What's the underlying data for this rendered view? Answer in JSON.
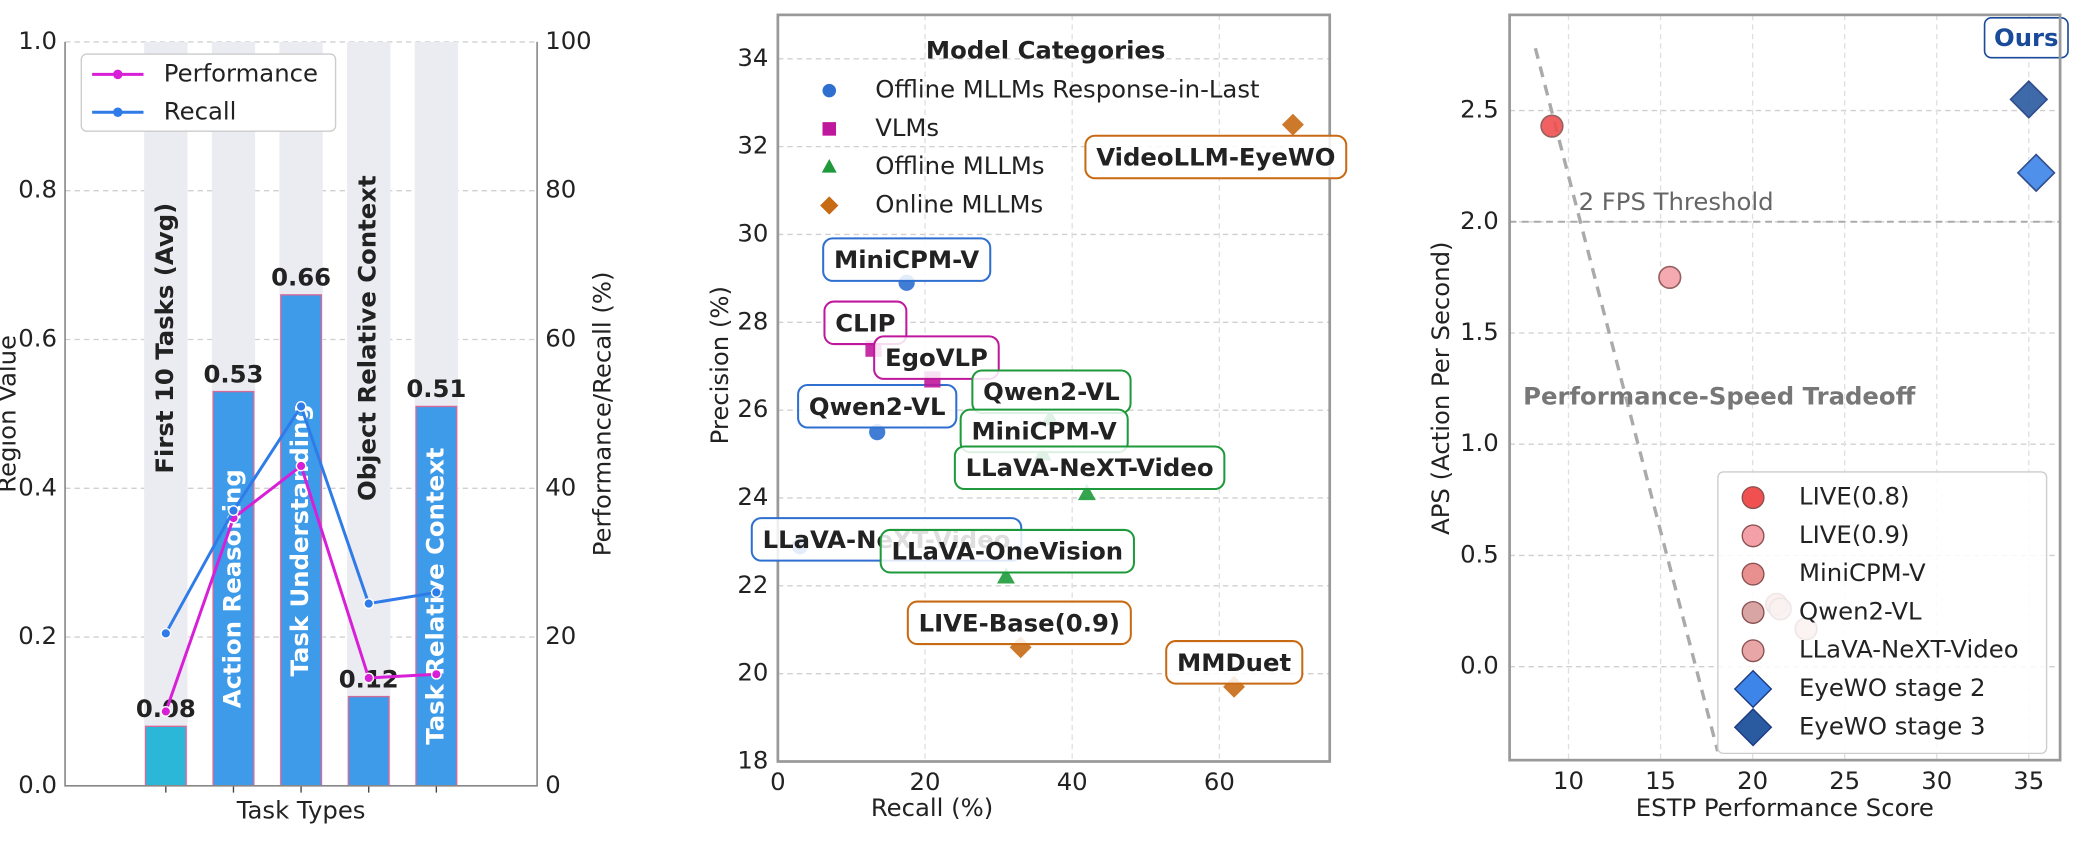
{
  "chart_data": [
    {
      "type": "bar_line",
      "y_label": "Region Value",
      "y2_label": "Performance/Recall (%)",
      "x_label": "Task Types",
      "categories": [
        "First 10 Tasks (Avg)",
        "Action Reasoning",
        "Task Understanding",
        "Object Relative Context",
        "Task Relative Context"
      ],
      "values": [
        0.08,
        0.53,
        0.66,
        0.12,
        0.51
      ],
      "colors": [
        "#2bb8d8",
        "#3d9be9",
        "#3d9be9",
        "#3d9be9",
        "#3d9be9"
      ],
      "ylim": [
        0,
        1
      ],
      "yticks": [
        {
          "value": 0,
          "label": "0.0"
        },
        0.2,
        0.4,
        0.6,
        0.8,
        {
          "value": 1,
          "label": "1.0"
        }
      ],
      "y2lim": [
        0,
        100
      ],
      "y2ticks": [
        0,
        20,
        40,
        60,
        80,
        100
      ],
      "series": [
        {
          "name": "Performance",
          "color": "#d81fd8",
          "axis": "y2",
          "values": [
            10,
            36,
            43,
            14.5,
            15
          ]
        },
        {
          "name": "Recall",
          "color": "#2f7be8",
          "axis": "y2",
          "values": [
            20.5,
            37,
            51,
            24.5,
            26
          ]
        }
      ],
      "grid": true,
      "legend": "upper left"
    },
    {
      "type": "scatter",
      "x_label": "Recall (%)",
      "y_label": "Precision (%)",
      "legend_title": "Model Categories",
      "xlim": [
        0,
        75
      ],
      "xticks": [
        0,
        20,
        40,
        60
      ],
      "ylim": [
        18,
        35
      ],
      "yticks": [
        18,
        20,
        22,
        24,
        26,
        28,
        30,
        32,
        34
      ],
      "series": [
        {
          "name": "Offline MLLMs Response-in-Last",
          "color": "#2e6fd0",
          "marker": "circle",
          "labels": [
            "MiniCPM-V",
            "Qwen2-VL",
            "LLaVA-NeXT-Video"
          ],
          "x": [
            17.5,
            13.5,
            3
          ],
          "values": [
            28.9,
            25.5,
            22.9
          ]
        },
        {
          "name": "VLMs",
          "color": "#c0189c",
          "marker": "square",
          "labels": [
            "CLIP",
            "EgoVLP"
          ],
          "x": [
            13,
            21
          ],
          "values": [
            27.4,
            26.7
          ]
        },
        {
          "name": "Offline MLLMs",
          "color": "#1e9a3c",
          "marker": "triangle",
          "labels": [
            "Qwen2-VL",
            "MiniCPM-V",
            "LLaVA-NeXT-Video",
            "LLaVA-OneVision"
          ],
          "x": [
            37,
            36,
            42,
            31
          ],
          "values": [
            25.8,
            25.0,
            24.1,
            22.2
          ]
        },
        {
          "name": "Online MLLMs",
          "color": "#c86a14",
          "marker": "diamond",
          "labels": [
            "VideoLLM-EyeWO",
            "LIVE-Base(0.9)",
            "MMDuet"
          ],
          "x": [
            70,
            33,
            62
          ],
          "values": [
            32.5,
            20.6,
            19.7
          ]
        }
      ],
      "grid": true,
      "legend": "upper left"
    },
    {
      "type": "scatter",
      "x_label": "ESTP Performance Score",
      "y_label": "APS (Action Per Second)",
      "xlim": [
        6.8,
        36.7
      ],
      "xticks": [
        10,
        15,
        20,
        25,
        30,
        35
      ],
      "ylim": [
        -0.42,
        2.93
      ],
      "yticks": [
        {
          "value": 0,
          "label": "0.0"
        },
        0.5,
        {
          "value": 1,
          "label": "1.0"
        },
        1.5,
        {
          "value": 2,
          "label": "2.0"
        },
        2.5
      ],
      "series": [
        {
          "name": "LIVE(0.8)",
          "color": "#f05050",
          "marker": "circle",
          "x": [
            9.1
          ],
          "values": [
            2.43
          ]
        },
        {
          "name": "LIVE(0.9)",
          "color": "#f4a0a8",
          "marker": "circle",
          "x": [
            15.5
          ],
          "values": [
            1.75
          ]
        },
        {
          "name": "MiniCPM-V",
          "color": "#e88f8f",
          "marker": "circle",
          "x": [
            21.3
          ],
          "values": [
            0.28
          ]
        },
        {
          "name": "Qwen2-VL",
          "color": "#d8a4a4",
          "marker": "circle",
          "x": [
            21.5
          ],
          "values": [
            0.26
          ]
        },
        {
          "name": "LLaVA-NeXT-Video",
          "color": "#e8a6a6",
          "marker": "circle",
          "x": [
            22.9
          ],
          "values": [
            0.17
          ]
        },
        {
          "name": "EyeWO stage 2",
          "color": "#3d85e8",
          "marker": "diamond",
          "x": [
            35.4
          ],
          "values": [
            2.22
          ]
        },
        {
          "name": "EyeWO stage 3",
          "color": "#2a5aa0",
          "marker": "diamond",
          "x": [
            35
          ],
          "values": [
            2.55
          ]
        }
      ],
      "threshold": {
        "value": 2.0,
        "label": "2 FPS Threshold"
      },
      "trend": {
        "label": "Performance-Speed Tradeoff",
        "x": [
          8.2,
          18.1
        ],
        "values": [
          2.78,
          -0.38
        ]
      },
      "annotation": "Ours",
      "grid": true,
      "legend": "lower right"
    }
  ]
}
